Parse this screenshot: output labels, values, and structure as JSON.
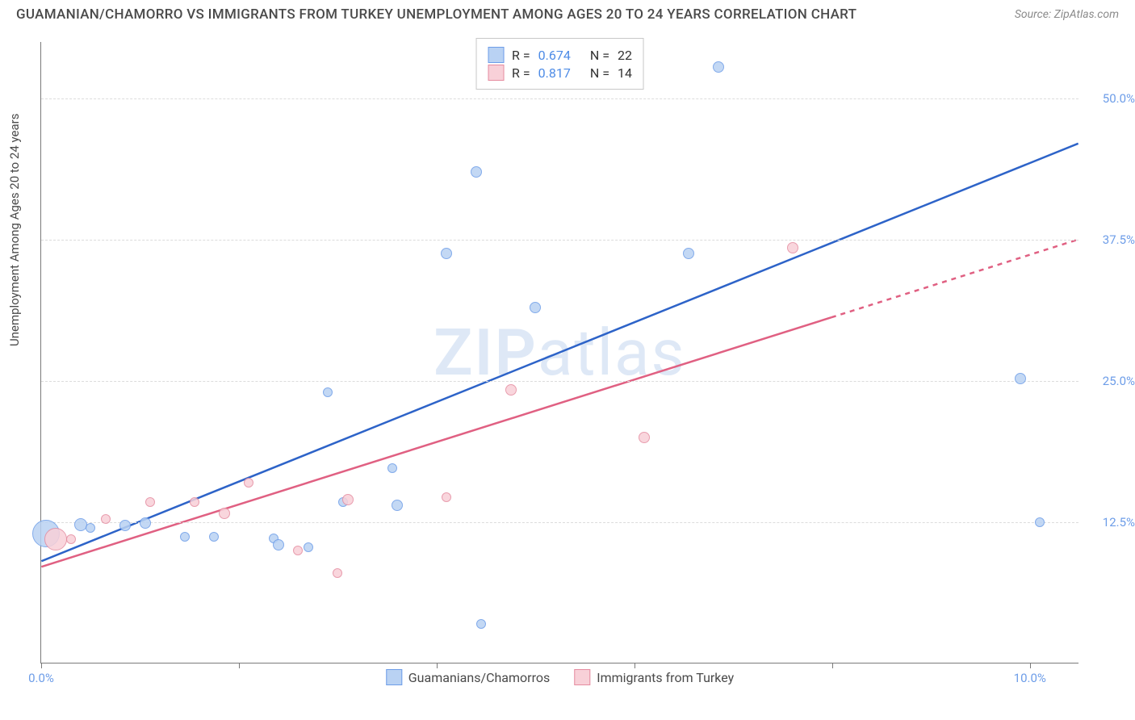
{
  "header": {
    "title": "GUAMANIAN/CHAMORRO VS IMMIGRANTS FROM TURKEY UNEMPLOYMENT AMONG AGES 20 TO 24 YEARS CORRELATION CHART",
    "source": "Source: ZipAtlas.com"
  },
  "watermark": {
    "bold": "ZIP",
    "rest": "atlas"
  },
  "chart": {
    "type": "scatter",
    "y_axis_label": "Unemployment Among Ages 20 to 24 years",
    "xlim": [
      0,
      10.5
    ],
    "ylim": [
      0,
      55
    ],
    "x_ticks": [
      {
        "pos": 0,
        "label": "0.0%"
      },
      {
        "pos": 2,
        "label": ""
      },
      {
        "pos": 4,
        "label": ""
      },
      {
        "pos": 6,
        "label": ""
      },
      {
        "pos": 8,
        "label": ""
      },
      {
        "pos": 10,
        "label": "10.0%"
      }
    ],
    "y_ticks": [
      {
        "pos": 12.5,
        "label": "12.5%"
      },
      {
        "pos": 25.0,
        "label": "25.0%"
      },
      {
        "pos": 37.5,
        "label": "37.5%"
      },
      {
        "pos": 50.0,
        "label": "50.0%"
      }
    ],
    "grid_color": "#dcdcdc",
    "axis_color": "#7a7a7a",
    "tick_label_color": "#6d9de8",
    "background_color": "#ffffff",
    "label_fontsize": 15,
    "title_fontsize": 17,
    "series": [
      {
        "name": "Guamanians/Chamorros",
        "marker_fill": "#b9d2f3",
        "marker_stroke": "#6d9de8",
        "line_color": "#2d63c8",
        "line_width": 2.5,
        "line_dash": "none",
        "r_value": "0.674",
        "n_value": "22",
        "trendline": {
          "x1": 0.0,
          "y1": 9.0,
          "x2": 10.5,
          "y2": 46.0,
          "dash_from_x": null
        },
        "points": [
          {
            "x": 0.05,
            "y": 11.5,
            "size": 34
          },
          {
            "x": 0.4,
            "y": 12.3,
            "size": 16
          },
          {
            "x": 0.5,
            "y": 12.0,
            "size": 12
          },
          {
            "x": 0.85,
            "y": 12.2,
            "size": 14
          },
          {
            "x": 1.05,
            "y": 12.4,
            "size": 14
          },
          {
            "x": 1.45,
            "y": 11.2,
            "size": 12
          },
          {
            "x": 1.75,
            "y": 11.2,
            "size": 12
          },
          {
            "x": 2.35,
            "y": 11.1,
            "size": 12
          },
          {
            "x": 2.4,
            "y": 10.5,
            "size": 14
          },
          {
            "x": 2.7,
            "y": 10.3,
            "size": 12
          },
          {
            "x": 3.05,
            "y": 14.3,
            "size": 12
          },
          {
            "x": 2.9,
            "y": 24.0,
            "size": 12
          },
          {
            "x": 3.6,
            "y": 14.0,
            "size": 14
          },
          {
            "x": 3.55,
            "y": 17.3,
            "size": 12
          },
          {
            "x": 4.1,
            "y": 36.3,
            "size": 14
          },
          {
            "x": 4.4,
            "y": 43.5,
            "size": 14
          },
          {
            "x": 4.45,
            "y": 3.5,
            "size": 12
          },
          {
            "x": 5.0,
            "y": 31.5,
            "size": 14
          },
          {
            "x": 6.55,
            "y": 36.3,
            "size": 14
          },
          {
            "x": 6.85,
            "y": 52.8,
            "size": 14
          },
          {
            "x": 9.9,
            "y": 25.2,
            "size": 14
          },
          {
            "x": 10.1,
            "y": 12.5,
            "size": 12
          }
        ]
      },
      {
        "name": "Immigrants from Turkey",
        "marker_fill": "#f8d0d8",
        "marker_stroke": "#e58ca0",
        "line_color": "#e06082",
        "line_width": 2.5,
        "line_dash": "none",
        "r_value": "0.817",
        "n_value": "14",
        "trendline": {
          "x1": 0.0,
          "y1": 8.5,
          "x2": 10.5,
          "y2": 37.5,
          "dash_from_x": 8.0
        },
        "points": [
          {
            "x": 0.15,
            "y": 11.0,
            "size": 28
          },
          {
            "x": 0.3,
            "y": 11.0,
            "size": 12
          },
          {
            "x": 0.65,
            "y": 12.8,
            "size": 12
          },
          {
            "x": 1.1,
            "y": 14.3,
            "size": 12
          },
          {
            "x": 1.55,
            "y": 14.3,
            "size": 12
          },
          {
            "x": 1.85,
            "y": 13.3,
            "size": 14
          },
          {
            "x": 2.1,
            "y": 16.0,
            "size": 12
          },
          {
            "x": 2.6,
            "y": 10.0,
            "size": 12
          },
          {
            "x": 3.1,
            "y": 14.5,
            "size": 14
          },
          {
            "x": 3.0,
            "y": 8.0,
            "size": 12
          },
          {
            "x": 4.1,
            "y": 14.7,
            "size": 12
          },
          {
            "x": 4.75,
            "y": 24.2,
            "size": 14
          },
          {
            "x": 6.1,
            "y": 20.0,
            "size": 14
          },
          {
            "x": 7.6,
            "y": 36.8,
            "size": 14
          }
        ]
      }
    ],
    "legend_top": [
      {
        "series_index": 0,
        "r_label": "R =",
        "n_label": "N ="
      },
      {
        "series_index": 1,
        "r_label": "R =",
        "n_label": "N ="
      }
    ],
    "legend_bottom": [
      {
        "series_index": 0
      },
      {
        "series_index": 1
      }
    ]
  }
}
